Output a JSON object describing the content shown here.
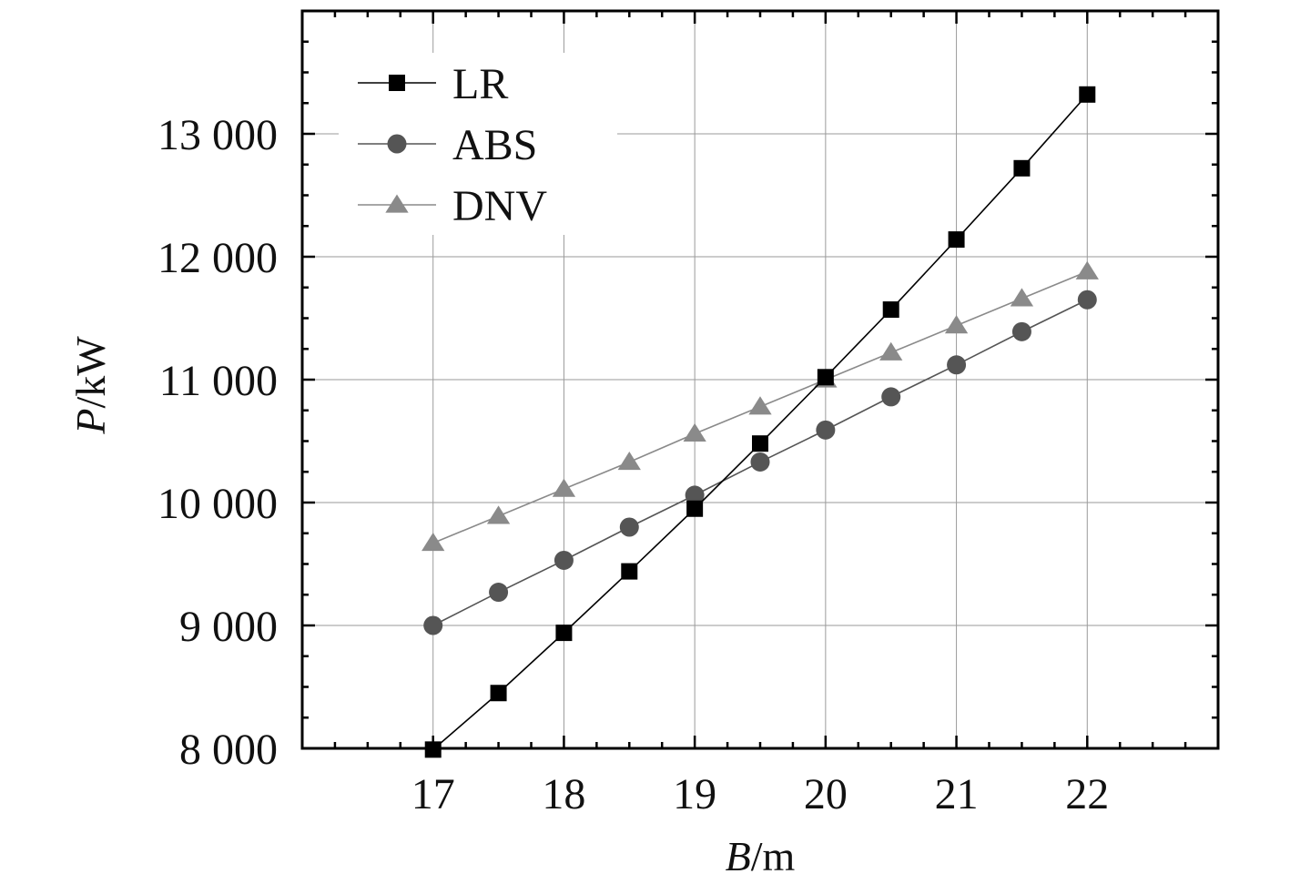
{
  "chart_data": {
    "type": "line",
    "title": "",
    "xlabel": "B/m",
    "xlabel_italic_part": "B",
    "xlabel_rest": "/m",
    "ylabel": "P/kW",
    "ylabel_italic_part": "P",
    "ylabel_rest": "/kW",
    "x": [
      17,
      17.5,
      18,
      18.5,
      19,
      19.5,
      20,
      20.5,
      21,
      21.5,
      22
    ],
    "xlim": [
      16,
      23
    ],
    "ylim": [
      8000,
      14000
    ],
    "x_ticks": [
      17,
      18,
      19,
      20,
      21,
      22
    ],
    "x_tick_labels": [
      "17",
      "18",
      "19",
      "20",
      "21",
      "22"
    ],
    "y_ticks": [
      8000,
      9000,
      10000,
      11000,
      12000,
      13000
    ],
    "y_tick_labels": [
      "8 000",
      "9 000",
      "10 000",
      "11 000",
      "12 000",
      "13 000"
    ],
    "grid": true,
    "legend_position": "top-left",
    "series": [
      {
        "name": "LR",
        "marker": "square",
        "color": "#000000",
        "values": [
          7990,
          8450,
          8940,
          9440,
          9950,
          10480,
          11020,
          11570,
          12140,
          12720,
          13320
        ]
      },
      {
        "name": "ABS",
        "marker": "circle",
        "color": "#555555",
        "values": [
          9000,
          9270,
          9530,
          9800,
          10060,
          10330,
          10590,
          10860,
          11120,
          11390,
          11650
        ]
      },
      {
        "name": "DNV",
        "marker": "triangle",
        "color": "#8a8a8a",
        "values": [
          9670,
          9890,
          10110,
          10330,
          10560,
          10780,
          11000,
          11220,
          11440,
          11660,
          11880
        ]
      }
    ]
  }
}
